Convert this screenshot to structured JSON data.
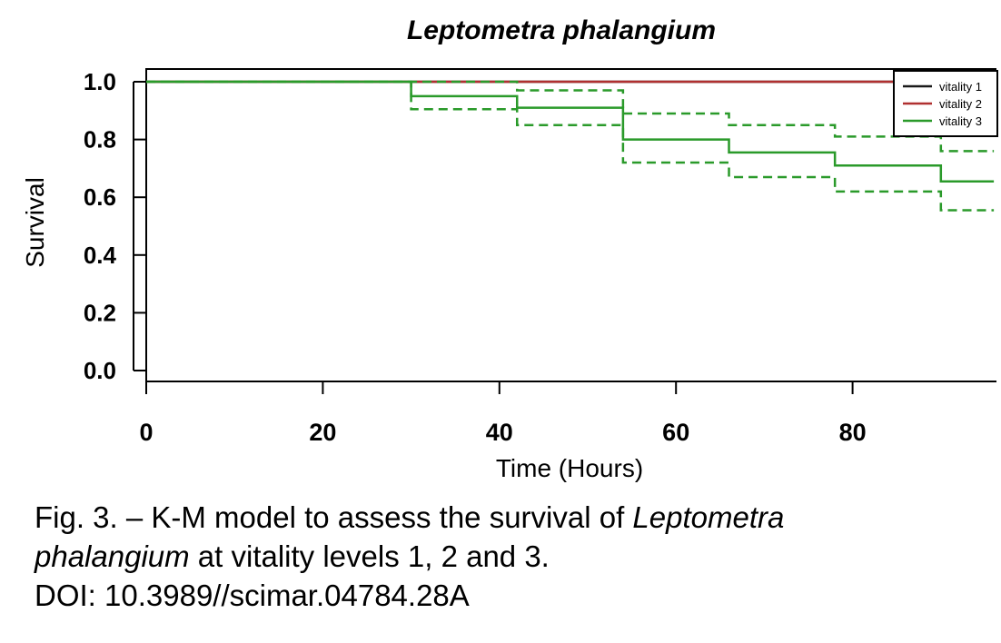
{
  "chart_data": {
    "type": "line",
    "title": "Leptometra phalangium",
    "xlabel": "Time (Hours)",
    "ylabel": "Survival",
    "xlim": [
      0,
      96
    ],
    "ylim": [
      0,
      1.0
    ],
    "x_ticks": [
      0,
      20,
      40,
      60,
      80
    ],
    "y_ticks": [
      "0.0",
      "0.2",
      "0.4",
      "0.6",
      "0.8",
      "1.0"
    ],
    "grid": false,
    "legend_position": "top-right",
    "step": true,
    "series": [
      {
        "name": "vitality 1",
        "color": "#1a1a1a",
        "style": "solid",
        "x": [
          0,
          96
        ],
        "y": [
          1.0,
          1.0
        ]
      },
      {
        "name": "vitality 2",
        "color": "#b03030",
        "style": "solid",
        "x": [
          0,
          96
        ],
        "y": [
          1.0,
          1.0
        ]
      },
      {
        "name": "vitality 3",
        "color": "#2a9a2a",
        "style": "solid",
        "x": [
          0,
          30,
          42,
          54,
          66,
          78,
          90,
          96
        ],
        "y": [
          1.0,
          0.95,
          0.91,
          0.8,
          0.755,
          0.71,
          0.655,
          0.655
        ]
      },
      {
        "color": "#2a9a2a",
        "style": "dashed",
        "x": [
          0,
          30,
          42,
          54,
          66,
          78,
          90,
          96
        ],
        "y": [
          1.0,
          1.0,
          0.97,
          0.89,
          0.85,
          0.81,
          0.76,
          0.76
        ]
      },
      {
        "color": "#2a9a2a",
        "style": "dashed",
        "x": [
          0,
          30,
          42,
          54,
          66,
          78,
          90,
          96
        ],
        "y": [
          1.0,
          0.905,
          0.85,
          0.72,
          0.67,
          0.62,
          0.555,
          0.555
        ]
      }
    ]
  },
  "caption": {
    "line1_prefix": "Fig. 3. – K-M model to assess the survival of ",
    "line1_italic": "Leptometra",
    "line2_italic": "phalangium",
    "line2_suffix": " at vitality levels 1, 2 and 3.",
    "line3": "DOI: 10.3989//scimar.04784.28A"
  }
}
